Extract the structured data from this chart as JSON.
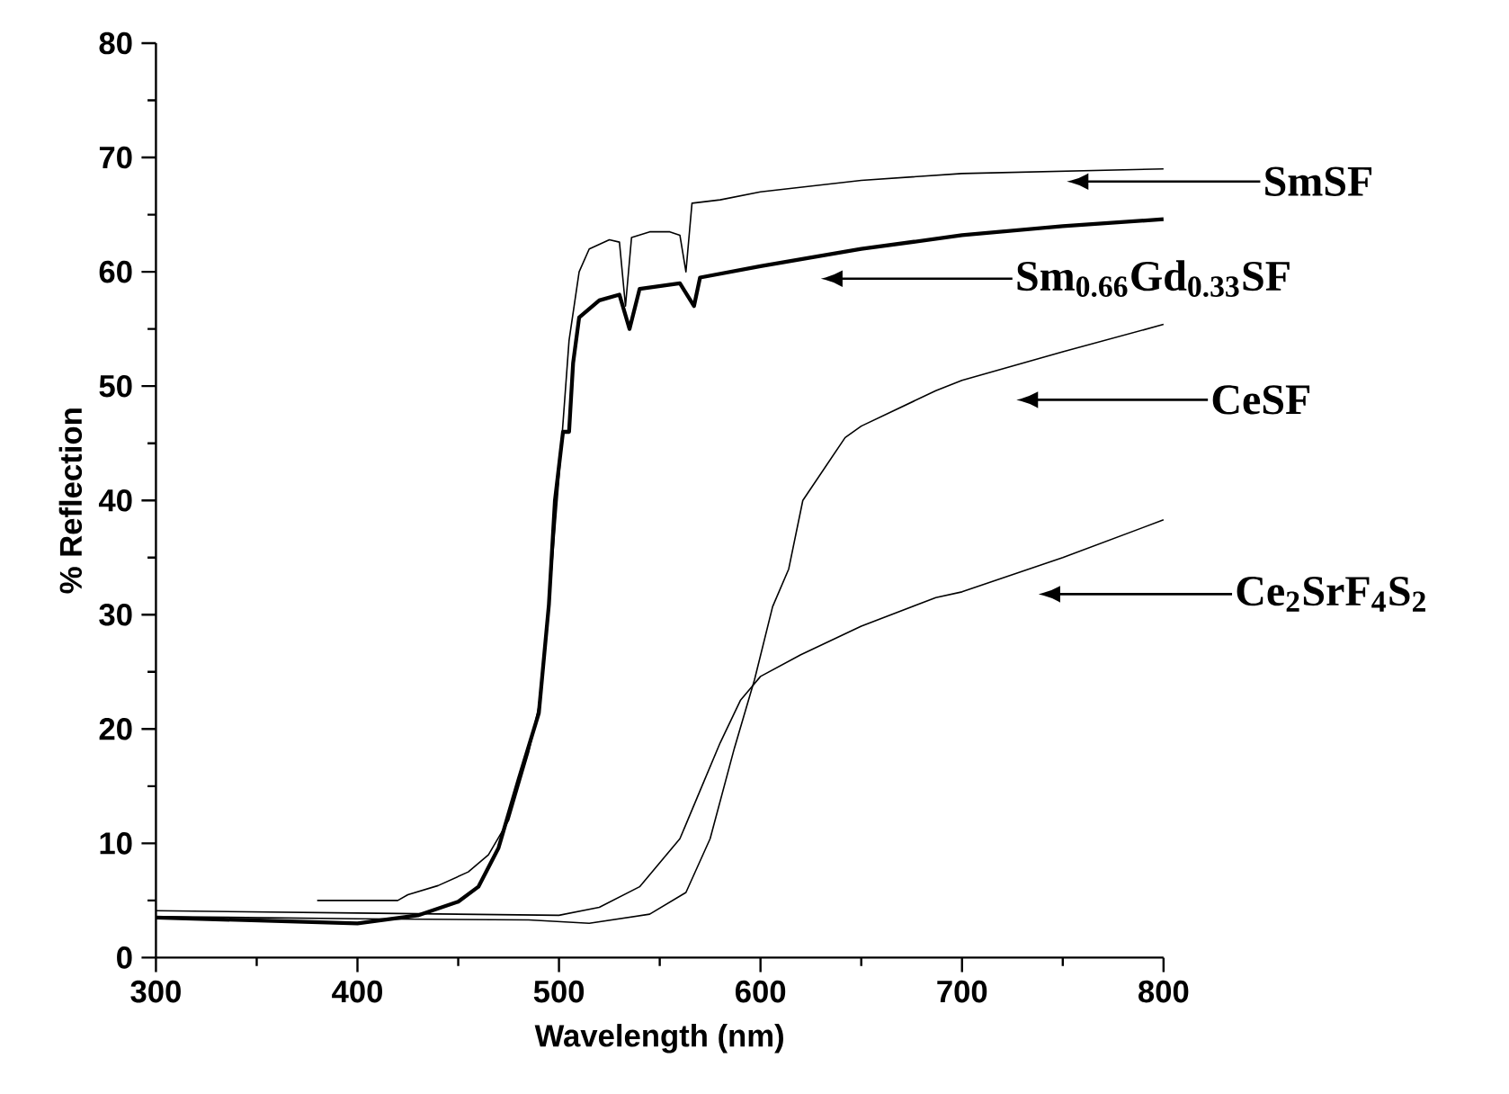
{
  "chart_data": {
    "type": "line",
    "xlabel": "Wavelength (nm)",
    "ylabel": "% Reflection",
    "legend": "right",
    "xlim": [
      300,
      800
    ],
    "ylim": [
      0,
      80
    ],
    "xticks": [
      300,
      400,
      500,
      600,
      700,
      800
    ],
    "yticks": [
      0,
      10,
      20,
      30,
      40,
      50,
      60,
      70,
      80
    ],
    "series": [
      {
        "name": "SmSF",
        "color": "#000000",
        "x": [
          380,
          420,
          425,
          440,
          455,
          465,
          475,
          485,
          490,
          495,
          500,
          505,
          510,
          515,
          525,
          530,
          533,
          536,
          545,
          555,
          560,
          563,
          566,
          580,
          600,
          650,
          700,
          750,
          800
        ],
        "values": [
          5.0,
          5.0,
          5.5,
          6.3,
          7.5,
          9.0,
          12,
          18,
          22,
          31,
          42,
          54,
          60,
          62,
          62.8,
          62.6,
          57,
          63,
          63.5,
          63.5,
          63.2,
          60,
          66,
          66.3,
          67,
          68,
          68.6,
          68.8,
          69
        ]
      },
      {
        "name": "Sm$_{0.66}$Gd$_{0.33}$SF",
        "color": "#000000",
        "x": [
          300,
          400,
          430,
          450,
          460,
          470,
          480,
          490,
          495,
          498,
          502,
          505,
          507,
          510,
          520,
          530,
          535,
          540,
          560,
          567,
          570,
          600,
          650,
          700,
          750,
          800
        ],
        "values": [
          3.5,
          3.0,
          3.7,
          4.9,
          6.2,
          9.6,
          15.6,
          21.4,
          30.9,
          40,
          46,
          46,
          52,
          56,
          57.5,
          58,
          55,
          58.5,
          59,
          57,
          59.5,
          60.5,
          62,
          63.2,
          64,
          64.6
        ]
      },
      {
        "name": "CeSF",
        "color": "#000000",
        "x": [
          300,
          400,
          485,
          515,
          545,
          563,
          575,
          587,
          597,
          606,
          614,
          621,
          642,
          650,
          687,
          700,
          750,
          800
        ],
        "values": [
          3.6,
          3.4,
          3.3,
          3.0,
          3.8,
          5.7,
          10.4,
          18.3,
          24.3,
          30.7,
          34,
          40,
          45.5,
          46.5,
          49.6,
          50.5,
          53,
          55.4
        ]
      },
      {
        "name": "Ce$_{2}$SrF$_{4}$S$_{2}$",
        "color": "#000000",
        "x": [
          300,
          400,
          500,
          520,
          540,
          560,
          570,
          580,
          590,
          600,
          620,
          650,
          687,
          700,
          750,
          800
        ],
        "values": [
          4.1,
          3.9,
          3.7,
          4.4,
          6.2,
          10.4,
          14.6,
          18.8,
          22.5,
          24.6,
          26.5,
          29,
          31.5,
          32,
          35,
          38.3
        ]
      }
    ]
  }
}
